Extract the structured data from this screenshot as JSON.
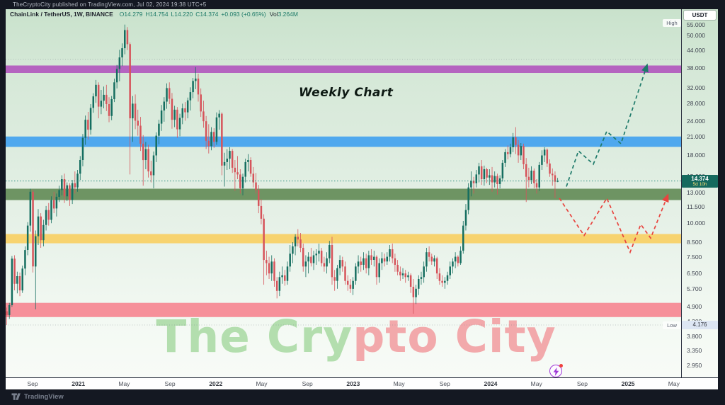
{
  "topbar": {
    "text": "TheCryptoCity published on TradingView.com, Jul 02, 2024 19:38 UTC+5"
  },
  "symbol": {
    "name": "ChainLink / TetherUS, 1W, BINANCE",
    "open": "O14.279",
    "high": "H14.754",
    "low": "L14.220",
    "close": "C14.374",
    "change": "+0.093 (+0.65%)",
    "vol_label": "Vol",
    "volume": "3.264M"
  },
  "annotations": {
    "weekly_chart": "Weekly Chart",
    "watermark_left": "The Cry",
    "watermark_right": "pto City",
    "high_label": "High",
    "low_label": "Low",
    "low_value": "4.176",
    "price_label": "14.374",
    "countdown": "5d 10h",
    "currency_button": "USDT",
    "tv_logo": "TradingView"
  },
  "colors": {
    "bull": "#156e60",
    "bear": "#d6535a",
    "proj_up": "#1e7a6a",
    "proj_down": "#e8443f",
    "price_line": "#2e8f7f",
    "badge": "#156a5e",
    "accent_text": "#1d7a68"
  },
  "chart_data": {
    "type": "candlestick",
    "symbol": "LINKUSDT",
    "description": "ChainLink / TetherUS",
    "timeframe": "1W",
    "exchange": "BINANCE",
    "scale": "logarithmic",
    "last_bar": {
      "open": 14.279,
      "high": 14.754,
      "low": 14.22,
      "close": 14.374,
      "change": 0.093,
      "change_pct": 0.65,
      "volume": "3.264M"
    },
    "current_price": 14.374,
    "countdown": "5d 10h",
    "visible_range_high": 55.0,
    "visible_range_low": 4.176,
    "price_ticks": [
      "55.000",
      "50.000",
      "44.000",
      "38.000",
      "32.000",
      "28.000",
      "24.000",
      "21.000",
      "18.000",
      "15.000",
      "13.000",
      "11.500",
      "10.000",
      "8.500",
      "7.500",
      "6.500",
      "5.700",
      "4.900",
      "4.300",
      "3.800",
      "3.350",
      "2.950"
    ],
    "time_labels": [
      "Sep",
      "2021",
      "May",
      "Sep",
      "2022",
      "May",
      "Sep",
      "2023",
      "May",
      "Sep",
      "2024",
      "May",
      "Sep",
      "2025",
      "May"
    ],
    "gridline_prices": [
      40.8,
      4.176
    ],
    "zones": [
      {
        "name": "resistance-purple",
        "price_from": 36.3,
        "price_to": 38.7,
        "color": "#b564c0"
      },
      {
        "name": "resistance-blue",
        "price_from": 19.25,
        "price_to": 21.05,
        "color": "#4fa8ee"
      },
      {
        "name": "support-green",
        "price_from": 12.2,
        "price_to": 13.45,
        "color": "#6e9463"
      },
      {
        "name": "support-yellow",
        "price_from": 8.42,
        "price_to": 9.12,
        "color": "#f7d36f"
      },
      {
        "name": "support-pink",
        "price_from": 4.47,
        "price_to": 5.05,
        "color": "#f6909a"
      }
    ],
    "projections": [
      {
        "name": "bullish-path",
        "color": "#1e7a6a",
        "points": [
          [
            792,
            13.7
          ],
          [
            809,
            18.6
          ],
          [
            830,
            16.6
          ],
          [
            849,
            22.0
          ],
          [
            869,
            19.8
          ],
          [
            904,
            37.5
          ]
        ]
      },
      {
        "name": "bearish-path",
        "color": "#e8443f",
        "points": [
          [
            782,
            12.4
          ],
          [
            817,
            9.0
          ],
          [
            849,
            12.4
          ],
          [
            882,
            7.8
          ],
          [
            897,
            9.9
          ],
          [
            911,
            8.8
          ],
          [
            933,
            12.3
          ]
        ]
      }
    ],
    "candles": [
      [
        4.7,
        4.85,
        4.18,
        4.55
      ],
      [
        4.55,
        5.05,
        4.4,
        4.95
      ],
      [
        4.95,
        7.55,
        4.88,
        7.38
      ],
      [
        7.38,
        7.6,
        5.62,
        5.95
      ],
      [
        5.95,
        6.6,
        5.48,
        6.35
      ],
      [
        6.35,
        6.55,
        5.35,
        5.62
      ],
      [
        5.62,
        6.95,
        5.5,
        6.78
      ],
      [
        6.78,
        8.2,
        6.4,
        7.95
      ],
      [
        7.95,
        10.1,
        7.6,
        9.8
      ],
      [
        9.8,
        13.45,
        9.3,
        13.1
      ],
      [
        13.1,
        13.35,
        6.55,
        6.9
      ],
      [
        6.9,
        9.4,
        4.78,
        8.95
      ],
      [
        8.95,
        11.3,
        8.3,
        10.6
      ],
      [
        10.6,
        10.9,
        8.1,
        8.65
      ],
      [
        8.65,
        10.3,
        8.2,
        9.85
      ],
      [
        9.85,
        11.6,
        9.4,
        11.2
      ],
      [
        11.2,
        11.9,
        9.8,
        10.3
      ],
      [
        10.3,
        12.6,
        10.0,
        12.2
      ],
      [
        12.2,
        13.1,
        10.9,
        11.35
      ],
      [
        11.35,
        12.9,
        10.6,
        12.55
      ],
      [
        12.55,
        13.8,
        12.0,
        13.3
      ],
      [
        13.3,
        15.1,
        12.7,
        14.6
      ],
      [
        14.6,
        15.3,
        11.9,
        12.6
      ],
      [
        12.6,
        14.2,
        12.1,
        13.85
      ],
      [
        13.85,
        14.1,
        11.6,
        12.2
      ],
      [
        12.2,
        14.5,
        11.8,
        14.1
      ],
      [
        14.1,
        15.6,
        12.9,
        13.6
      ],
      [
        13.6,
        15.8,
        13.1,
        15.3
      ],
      [
        15.3,
        17.8,
        14.5,
        17.2
      ],
      [
        17.2,
        21.5,
        16.3,
        20.8
      ],
      [
        20.8,
        25.2,
        19.6,
        24.3
      ],
      [
        24.3,
        26.0,
        20.5,
        22.3
      ],
      [
        22.3,
        27.8,
        21.4,
        26.9
      ],
      [
        26.9,
        30.5,
        25.8,
        29.7
      ],
      [
        29.7,
        34.2,
        28.1,
        32.8
      ],
      [
        32.8,
        33.5,
        24.6,
        27.2
      ],
      [
        27.2,
        31.4,
        25.5,
        28.6
      ],
      [
        28.6,
        32.3,
        26.8,
        30.1
      ],
      [
        30.1,
        32.8,
        26.2,
        27.8
      ],
      [
        27.8,
        29.5,
        23.8,
        25.1
      ],
      [
        25.1,
        29.8,
        24.2,
        29.0
      ],
      [
        29.0,
        34.6,
        28.3,
        33.5
      ],
      [
        33.5,
        38.9,
        31.8,
        37.6
      ],
      [
        37.6,
        44.3,
        33.8,
        41.5
      ],
      [
        41.5,
        46.8,
        38.5,
        44.9
      ],
      [
        44.9,
        55.0,
        42.6,
        52.5
      ],
      [
        52.5,
        53.8,
        44.2,
        46.5
      ],
      [
        46.5,
        47.2,
        15.2,
        24.6
      ],
      [
        24.6,
        29.8,
        20.1,
        27.9
      ],
      [
        27.9,
        30.2,
        22.4,
        24.1
      ],
      [
        24.1,
        26.5,
        21.2,
        23.1
      ],
      [
        23.1,
        24.9,
        18.6,
        19.8
      ],
      [
        19.8,
        21.3,
        13.8,
        17.2
      ],
      [
        17.2,
        20.1,
        15.9,
        18.9
      ],
      [
        18.9,
        19.6,
        14.8,
        15.6
      ],
      [
        15.6,
        17.1,
        14.2,
        15.1
      ],
      [
        15.1,
        18.5,
        13.5,
        17.9
      ],
      [
        17.9,
        21.8,
        16.9,
        21.2
      ],
      [
        21.2,
        24.3,
        19.7,
        23.5
      ],
      [
        23.5,
        27.6,
        22.1,
        26.3
      ],
      [
        26.3,
        29.5,
        23.9,
        28.4
      ],
      [
        28.4,
        33.2,
        26.7,
        31.9
      ],
      [
        31.9,
        33.5,
        27.8,
        29.1
      ],
      [
        29.1,
        30.6,
        22.5,
        24.3
      ],
      [
        24.3,
        27.4,
        22.8,
        26.5
      ],
      [
        26.5,
        27.1,
        20.8,
        22.4
      ],
      [
        22.4,
        25.6,
        21.1,
        24.7
      ],
      [
        24.7,
        27.9,
        23.4,
        26.8
      ],
      [
        26.8,
        28.3,
        24.1,
        25.9
      ],
      [
        25.9,
        29.4,
        24.6,
        28.7
      ],
      [
        28.7,
        32.1,
        26.3,
        30.8
      ],
      [
        30.8,
        34.8,
        29.2,
        33.9
      ],
      [
        33.9,
        38.2,
        31.6,
        34.6
      ],
      [
        34.6,
        36.1,
        28.4,
        30.2
      ],
      [
        30.2,
        31.8,
        24.9,
        26.1
      ],
      [
        26.1,
        28.6,
        22.7,
        24.0
      ],
      [
        24.0,
        25.1,
        18.9,
        20.3
      ],
      [
        20.3,
        23.4,
        18.2,
        19.4
      ],
      [
        19.4,
        22.8,
        18.7,
        21.9
      ],
      [
        21.9,
        22.6,
        19.1,
        20.1
      ],
      [
        20.1,
        25.9,
        19.6,
        24.8
      ],
      [
        24.8,
        26.4,
        22.3,
        25.6
      ],
      [
        25.6,
        25.9,
        15.1,
        16.4
      ],
      [
        16.4,
        18.3,
        13.7,
        16.9
      ],
      [
        16.9,
        18.9,
        15.8,
        17.4
      ],
      [
        17.4,
        19.2,
        15.9,
        18.6
      ],
      [
        18.6,
        18.9,
        15.4,
        16.1
      ],
      [
        16.1,
        17.2,
        13.2,
        15.5
      ],
      [
        15.5,
        17.8,
        14.6,
        15.2
      ],
      [
        15.2,
        15.9,
        12.9,
        13.5
      ],
      [
        13.5,
        15.3,
        12.7,
        14.9
      ],
      [
        14.9,
        17.4,
        14.2,
        16.9
      ],
      [
        16.9,
        18.1,
        15.6,
        17.2
      ],
      [
        17.2,
        17.6,
        14.9,
        15.3
      ],
      [
        15.3,
        16.2,
        13.6,
        14.2
      ],
      [
        14.2,
        15.4,
        12.9,
        13.3
      ],
      [
        13.3,
        13.9,
        10.9,
        11.6
      ],
      [
        11.6,
        12.3,
        9.9,
        10.4
      ],
      [
        10.4,
        10.8,
        5.9,
        7.3
      ],
      [
        7.3,
        7.9,
        6.4,
        7.1
      ],
      [
        7.1,
        7.5,
        6.2,
        6.5
      ],
      [
        6.5,
        7.6,
        6.1,
        7.2
      ],
      [
        7.2,
        7.4,
        5.8,
        6.1
      ],
      [
        6.1,
        6.3,
        5.25,
        5.6
      ],
      [
        5.6,
        6.6,
        5.35,
        6.3
      ],
      [
        6.3,
        6.9,
        5.95,
        6.4
      ],
      [
        6.4,
        6.7,
        5.85,
        6.1
      ],
      [
        6.1,
        7.2,
        5.9,
        6.9
      ],
      [
        6.9,
        8.3,
        6.6,
        7.7
      ],
      [
        7.7,
        8.5,
        7.1,
        8.2
      ],
      [
        8.2,
        9.1,
        7.6,
        8.9
      ],
      [
        8.9,
        9.5,
        8.2,
        8.7
      ],
      [
        8.7,
        9.2,
        7.8,
        8.1
      ],
      [
        8.1,
        8.4,
        6.6,
        6.9
      ],
      [
        6.9,
        7.6,
        6.3,
        7.2
      ],
      [
        7.2,
        7.8,
        6.5,
        7.5
      ],
      [
        7.5,
        8.1,
        6.9,
        7.1
      ],
      [
        7.1,
        7.9,
        6.7,
        7.6
      ],
      [
        7.6,
        8.0,
        7.0,
        7.7
      ],
      [
        7.7,
        8.4,
        7.2,
        7.9
      ],
      [
        7.9,
        8.1,
        6.9,
        7.1
      ],
      [
        7.1,
        7.5,
        6.6,
        6.9
      ],
      [
        6.9,
        7.8,
        6.5,
        7.4
      ],
      [
        7.4,
        8.6,
        7.1,
        8.3
      ],
      [
        8.3,
        8.9,
        5.9,
        6.3
      ],
      [
        6.3,
        6.7,
        5.6,
        6.1
      ],
      [
        6.1,
        7.0,
        5.7,
        6.8
      ],
      [
        6.8,
        7.6,
        6.4,
        7.3
      ],
      [
        7.3,
        7.5,
        6.6,
        6.9
      ],
      [
        6.9,
        7.2,
        5.9,
        6.1
      ],
      [
        6.1,
        6.4,
        5.6,
        5.9
      ],
      [
        5.9,
        6.2,
        5.5,
        5.7
      ],
      [
        5.7,
        6.3,
        5.4,
        6.1
      ],
      [
        6.1,
        7.1,
        5.9,
        6.9
      ],
      [
        6.9,
        7.6,
        6.5,
        7.2
      ],
      [
        7.2,
        7.5,
        6.6,
        7.0
      ],
      [
        7.0,
        7.8,
        6.7,
        7.4
      ],
      [
        7.4,
        7.7,
        6.5,
        6.8
      ],
      [
        6.8,
        7.9,
        6.4,
        7.6
      ],
      [
        7.6,
        8.0,
        7.0,
        7.3
      ],
      [
        7.3,
        7.9,
        6.9,
        7.5
      ],
      [
        7.5,
        7.6,
        5.9,
        6.3
      ],
      [
        6.3,
        7.4,
        6.0,
        7.1
      ],
      [
        7.1,
        7.8,
        6.7,
        7.4
      ],
      [
        7.4,
        7.7,
        6.9,
        7.2
      ],
      [
        7.2,
        7.8,
        7.0,
        7.5
      ],
      [
        7.5,
        8.3,
        7.2,
        8.0
      ],
      [
        8.0,
        8.4,
        7.1,
        7.4
      ],
      [
        7.4,
        7.7,
        6.6,
        7.0
      ],
      [
        7.0,
        7.3,
        6.4,
        6.6
      ],
      [
        6.6,
        6.9,
        6.1,
        6.4
      ],
      [
        6.4,
        6.8,
        6.2,
        6.5
      ],
      [
        6.5,
        6.7,
        6.0,
        6.3
      ],
      [
        6.3,
        6.6,
        6.1,
        6.4
      ],
      [
        6.4,
        6.5,
        5.5,
        5.8
      ],
      [
        5.8,
        6.2,
        4.6,
        5.3
      ],
      [
        5.3,
        5.9,
        5.0,
        5.7
      ],
      [
        5.7,
        6.4,
        5.4,
        6.2
      ],
      [
        6.2,
        6.6,
        5.9,
        6.3
      ],
      [
        6.3,
        7.2,
        6.0,
        6.9
      ],
      [
        6.9,
        8.1,
        6.6,
        7.8
      ],
      [
        7.8,
        8.2,
        7.2,
        7.5
      ],
      [
        7.5,
        7.7,
        7.0,
        7.2
      ],
      [
        7.2,
        7.6,
        6.9,
        7.4
      ],
      [
        7.4,
        7.5,
        6.2,
        6.5
      ],
      [
        6.5,
        6.8,
        5.9,
        6.1
      ],
      [
        6.1,
        6.4,
        5.8,
        6.0
      ],
      [
        6.0,
        6.3,
        5.7,
        6.1
      ],
      [
        6.1,
        6.6,
        5.9,
        6.4
      ],
      [
        6.4,
        7.2,
        6.2,
        6.9
      ],
      [
        6.9,
        7.4,
        6.5,
        7.2
      ],
      [
        7.2,
        7.8,
        6.8,
        7.5
      ],
      [
        7.5,
        7.6,
        6.9,
        7.1
      ],
      [
        7.1,
        8.2,
        7.0,
        7.9
      ],
      [
        7.9,
        10.2,
        7.7,
        9.8
      ],
      [
        9.8,
        11.8,
        9.4,
        11.2
      ],
      [
        11.2,
        14.1,
        10.8,
        13.6
      ],
      [
        13.6,
        15.6,
        12.6,
        14.4
      ],
      [
        14.4,
        14.9,
        12.9,
        14.1
      ],
      [
        14.1,
        15.8,
        13.6,
        15.2
      ],
      [
        15.2,
        16.8,
        14.2,
        16.3
      ],
      [
        16.3,
        17.2,
        13.9,
        14.6
      ],
      [
        14.6,
        16.4,
        13.8,
        15.9
      ],
      [
        15.9,
        16.1,
        14.1,
        14.8
      ],
      [
        14.8,
        15.9,
        13.9,
        15.1
      ],
      [
        15.1,
        16.2,
        13.1,
        14.2
      ],
      [
        14.2,
        15.6,
        13.6,
        15.0
      ],
      [
        15.0,
        15.3,
        12.8,
        14.0
      ],
      [
        14.0,
        15.1,
        13.5,
        14.7
      ],
      [
        14.7,
        17.2,
        14.3,
        16.8
      ],
      [
        16.8,
        18.9,
        16.2,
        18.4
      ],
      [
        18.4,
        19.5,
        17.3,
        18.1
      ],
      [
        18.1,
        19.8,
        17.6,
        19.2
      ],
      [
        19.2,
        21.7,
        18.4,
        20.9
      ],
      [
        20.9,
        22.8,
        18.1,
        19.6
      ],
      [
        19.6,
        20.4,
        16.8,
        17.9
      ],
      [
        17.9,
        19.9,
        17.2,
        19.4
      ],
      [
        19.4,
        19.8,
        15.9,
        16.6
      ],
      [
        16.6,
        17.5,
        12.0,
        14.9
      ],
      [
        14.9,
        16.1,
        13.6,
        14.5
      ],
      [
        14.5,
        16.3,
        14.0,
        15.7
      ],
      [
        15.7,
        16.0,
        13.5,
        14.1
      ],
      [
        14.1,
        14.6,
        12.9,
        13.6
      ],
      [
        13.6,
        16.9,
        13.2,
        16.5
      ],
      [
        16.5,
        18.7,
        15.8,
        17.9
      ],
      [
        17.9,
        19.2,
        16.9,
        18.8
      ],
      [
        18.8,
        19.0,
        16.2,
        16.7
      ],
      [
        16.7,
        17.3,
        14.9,
        15.3
      ],
      [
        15.3,
        16.0,
        13.8,
        15.1
      ],
      [
        15.1,
        15.6,
        12.4,
        14.28
      ],
      [
        14.279,
        14.754,
        14.22,
        14.374
      ]
    ]
  }
}
